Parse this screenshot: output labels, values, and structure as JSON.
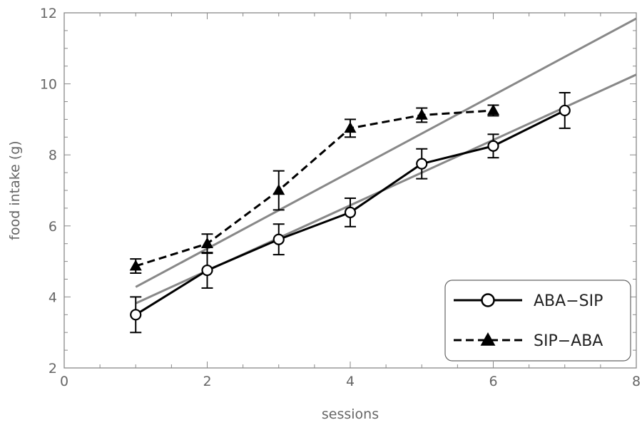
{
  "chart_data": {
    "type": "line",
    "xlabel": "sessions",
    "ylabel": "food intake (g)",
    "xlim": [
      0,
      8
    ],
    "ylim": [
      2,
      12
    ],
    "xticks": [
      0,
      2,
      4,
      6,
      8
    ],
    "yticks": [
      2,
      4,
      6,
      8,
      10,
      12
    ],
    "legend_position": "bottom-right",
    "series": [
      {
        "name": "ABA−SIP",
        "x": [
          1,
          2,
          3,
          4,
          5,
          6,
          7
        ],
        "y": [
          3.5,
          4.75,
          5.62,
          6.38,
          7.75,
          8.25,
          9.25
        ],
        "err": [
          0.5,
          0.5,
          0.43,
          0.4,
          0.42,
          0.33,
          0.5
        ],
        "marker": "open-circle",
        "line_style": "solid",
        "color": "#000000"
      },
      {
        "name": "SIP−ABA",
        "x": [
          1,
          2,
          3,
          4,
          5,
          6
        ],
        "y": [
          4.87,
          5.5,
          7.0,
          8.75,
          9.12,
          9.25
        ],
        "err": [
          0.2,
          0.27,
          0.55,
          0.25,
          0.2,
          0.15
        ],
        "marker": "filled-triangle",
        "line_style": "dashed",
        "color": "#000000"
      }
    ],
    "fit_lines": [
      {
        "of_series": "ABA−SIP",
        "slope": 0.92,
        "intercept": 2.9,
        "color": "#888888"
      },
      {
        "of_series": "SIP−ABA",
        "slope": 1.08,
        "intercept": 3.2,
        "color": "#888888"
      }
    ]
  }
}
